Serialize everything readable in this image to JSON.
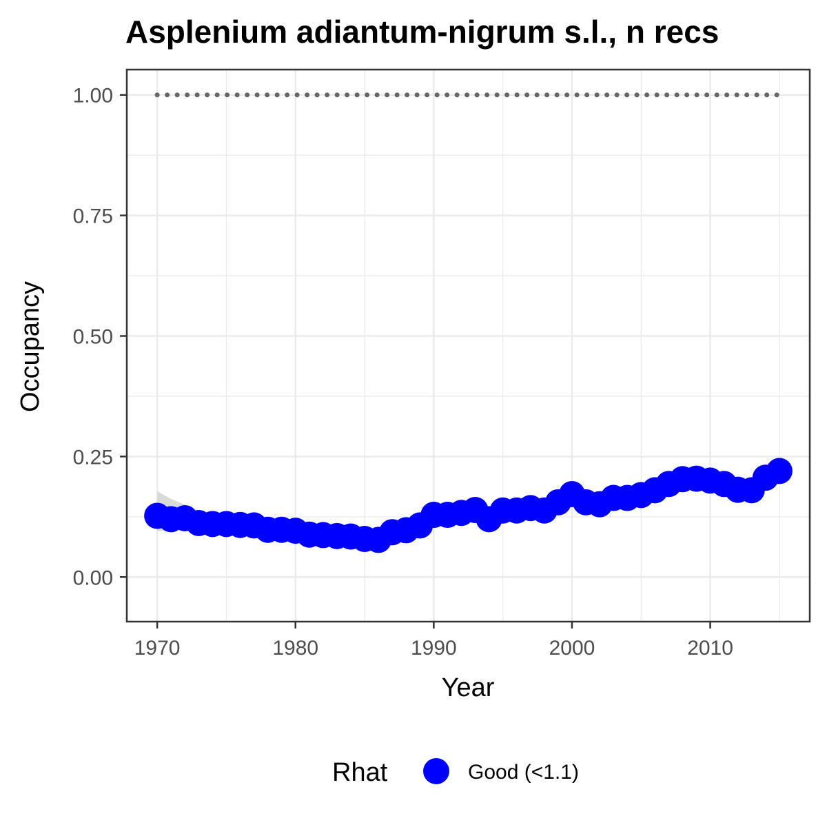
{
  "chart_data": {
    "type": "line",
    "title": "Asplenium adiantum-nigrum s.l., n recs",
    "xlabel": "Year",
    "ylabel": "Occupancy",
    "xlim": [
      1967.8,
      2017.2
    ],
    "ylim": [
      -0.0925,
      1.0525
    ],
    "x_ticks": [
      1970,
      1980,
      1990,
      2000,
      2010
    ],
    "x_tick_labels": [
      "1970",
      "1980",
      "1990",
      "2000",
      "2010"
    ],
    "y_ticks": [
      0,
      0.25,
      0.5,
      0.75,
      1.0
    ],
    "y_tick_labels": [
      "0.00",
      "0.25",
      "0.50",
      "0.75",
      "1.00"
    ],
    "grid": true,
    "legend": {
      "title": "Rhat",
      "position": "bottom",
      "entries": [
        {
          "label": "Good (<1.1)",
          "color": "#0000ff"
        }
      ]
    },
    "colors": {
      "series": "#0000ff",
      "ribbon": "#d9d9d9",
      "reference_line": "#666666",
      "grid": "#ebebeb",
      "panel_border": "#333333"
    },
    "x": [
      1970,
      1971,
      1972,
      1973,
      1974,
      1975,
      1976,
      1977,
      1978,
      1979,
      1980,
      1981,
      1982,
      1983,
      1984,
      1985,
      1986,
      1987,
      1988,
      1989,
      1990,
      1991,
      1992,
      1993,
      1994,
      1995,
      1996,
      1997,
      1998,
      1999,
      2000,
      2001,
      2002,
      2003,
      2004,
      2005,
      2006,
      2007,
      2008,
      2009,
      2010,
      2011,
      2012,
      2013,
      2014,
      2015
    ],
    "series": [
      {
        "rhat": "Good (<1.1)",
        "values": [
          0.127,
          0.12,
          0.122,
          0.112,
          0.11,
          0.11,
          0.108,
          0.107,
          0.098,
          0.098,
          0.096,
          0.088,
          0.087,
          0.085,
          0.084,
          0.079,
          0.077,
          0.093,
          0.097,
          0.107,
          0.129,
          0.129,
          0.133,
          0.139,
          0.12,
          0.138,
          0.138,
          0.143,
          0.138,
          0.155,
          0.172,
          0.155,
          0.151,
          0.164,
          0.164,
          0.17,
          0.18,
          0.193,
          0.203,
          0.204,
          0.2,
          0.193,
          0.181,
          0.18,
          0.206,
          0.22
        ],
        "lower": [
          0.095,
          0.097,
          0.1,
          0.097,
          0.097,
          0.098,
          0.097,
          0.097,
          0.09,
          0.09,
          0.089,
          0.082,
          0.081,
          0.079,
          0.078,
          0.073,
          0.071,
          0.086,
          0.09,
          0.1,
          0.121,
          0.121,
          0.125,
          0.131,
          0.112,
          0.13,
          0.13,
          0.135,
          0.13,
          0.147,
          0.164,
          0.147,
          0.143,
          0.156,
          0.156,
          0.162,
          0.172,
          0.185,
          0.195,
          0.196,
          0.192,
          0.185,
          0.173,
          0.172,
          0.198,
          0.212
        ],
        "upper": [
          0.178,
          0.162,
          0.15,
          0.135,
          0.128,
          0.126,
          0.122,
          0.118,
          0.108,
          0.106,
          0.103,
          0.094,
          0.093,
          0.091,
          0.09,
          0.085,
          0.083,
          0.1,
          0.104,
          0.114,
          0.137,
          0.137,
          0.141,
          0.147,
          0.128,
          0.146,
          0.146,
          0.151,
          0.146,
          0.163,
          0.18,
          0.163,
          0.159,
          0.172,
          0.172,
          0.178,
          0.188,
          0.201,
          0.211,
          0.212,
          0.208,
          0.201,
          0.189,
          0.188,
          0.214,
          0.228
        ]
      }
    ],
    "reference_line": {
      "y": 1.0,
      "x_from": 1970,
      "x_to": 2015,
      "style": "dotted"
    }
  }
}
